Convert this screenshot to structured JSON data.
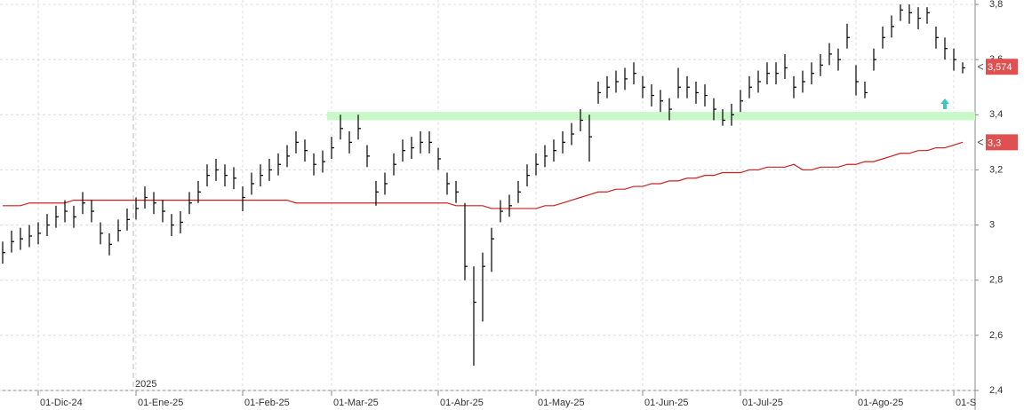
{
  "chart_data": {
    "type": "hlc",
    "categories": [
      null,
      null,
      null,
      null,
      "01-Dic-24",
      null,
      null,
      null,
      null,
      null,
      null,
      null,
      null,
      null,
      null,
      "01-Ene-25",
      null,
      null,
      null,
      null,
      null,
      null,
      null,
      null,
      null,
      null,
      null,
      "01-Feb-25",
      null,
      null,
      null,
      null,
      null,
      null,
      null,
      null,
      null,
      "01-Mar-25",
      null,
      null,
      null,
      null,
      null,
      null,
      null,
      null,
      null,
      null,
      null,
      "01-Abr-25",
      null,
      null,
      null,
      null,
      null,
      null,
      null,
      null,
      null,
      null,
      "01-May-25",
      null,
      null,
      null,
      null,
      null,
      null,
      null,
      null,
      null,
      null,
      null,
      "01-Jun-25",
      null,
      null,
      null,
      null,
      null,
      null,
      null,
      null,
      null,
      null,
      "01-Jul-25",
      null,
      null,
      null,
      null,
      null,
      null,
      null,
      null,
      null,
      null,
      null,
      null,
      "01-Ago-25",
      null,
      null,
      null,
      null,
      null,
      null,
      null,
      null,
      null,
      null,
      "01-S",
      null
    ],
    "high": [
      2.94,
      2.98,
      2.99,
      3.0,
      3.01,
      3.04,
      3.07,
      3.09,
      3.07,
      3.12,
      3.09,
      3.01,
      2.97,
      3.02,
      3.06,
      3.1,
      3.14,
      3.12,
      3.09,
      3.04,
      3.05,
      3.12,
      3.16,
      3.22,
      3.24,
      3.22,
      3.21,
      3.14,
      3.19,
      3.22,
      3.24,
      3.26,
      3.29,
      3.34,
      3.31,
      3.26,
      3.27,
      3.32,
      3.4,
      3.34,
      3.4,
      3.29,
      3.16,
      3.19,
      3.26,
      3.31,
      3.32,
      3.34,
      3.34,
      3.28,
      3.19,
      3.16,
      3.08,
      2.85,
      2.9,
      2.99,
      3.09,
      3.11,
      3.16,
      3.22,
      3.26,
      3.29,
      3.31,
      3.34,
      3.37,
      3.42,
      3.4,
      3.52,
      3.54,
      3.56,
      3.57,
      3.59,
      3.54,
      3.51,
      3.49,
      3.46,
      3.57,
      3.54,
      3.52,
      3.51,
      3.46,
      3.42,
      3.44,
      3.49,
      3.54,
      3.56,
      3.59,
      3.59,
      3.62,
      3.54,
      3.56,
      3.59,
      3.62,
      3.66,
      3.64,
      3.73,
      3.58,
      3.52,
      3.64,
      3.72,
      3.76,
      3.8,
      3.8,
      3.79,
      3.79,
      3.72,
      3.68,
      3.64,
      3.59
    ],
    "low": [
      2.86,
      2.9,
      2.91,
      2.92,
      2.93,
      2.96,
      2.99,
      3.01,
      2.99,
      3.04,
      3.01,
      2.93,
      2.89,
      2.94,
      2.98,
      3.02,
      3.06,
      3.04,
      3.01,
      2.96,
      2.97,
      3.04,
      3.08,
      3.14,
      3.16,
      3.14,
      3.13,
      3.05,
      3.11,
      3.14,
      3.16,
      3.18,
      3.21,
      3.26,
      3.23,
      3.18,
      3.19,
      3.24,
      3.31,
      3.26,
      3.31,
      3.21,
      3.07,
      3.11,
      3.18,
      3.23,
      3.24,
      3.26,
      3.26,
      3.2,
      3.11,
      3.08,
      2.8,
      2.49,
      2.65,
      2.83,
      3.01,
      3.03,
      3.08,
      3.14,
      3.18,
      3.21,
      3.23,
      3.26,
      3.29,
      3.34,
      3.23,
      3.44,
      3.46,
      3.48,
      3.49,
      3.51,
      3.46,
      3.43,
      3.41,
      3.38,
      3.46,
      3.46,
      3.44,
      3.43,
      3.38,
      3.36,
      3.36,
      3.41,
      3.46,
      3.48,
      3.51,
      3.51,
      3.53,
      3.46,
      3.48,
      3.51,
      3.54,
      3.58,
      3.56,
      3.64,
      3.47,
      3.46,
      3.56,
      3.64,
      3.68,
      3.74,
      3.73,
      3.71,
      3.73,
      3.64,
      3.6,
      3.56,
      3.55
    ],
    "close": [
      2.9,
      2.94,
      2.95,
      2.96,
      2.97,
      3.0,
      3.03,
      3.05,
      3.03,
      3.08,
      3.05,
      2.97,
      2.93,
      2.98,
      3.02,
      3.06,
      3.1,
      3.08,
      3.05,
      3.0,
      3.01,
      3.08,
      3.12,
      3.18,
      3.2,
      3.18,
      3.17,
      3.1,
      3.15,
      3.18,
      3.2,
      3.22,
      3.25,
      3.3,
      3.27,
      3.22,
      3.23,
      3.28,
      3.35,
      3.3,
      3.35,
      3.25,
      3.12,
      3.15,
      3.22,
      3.27,
      3.28,
      3.3,
      3.3,
      3.24,
      3.15,
      3.12,
      2.85,
      2.72,
      2.85,
      2.95,
      3.05,
      3.07,
      3.12,
      3.18,
      3.22,
      3.25,
      3.27,
      3.3,
      3.33,
      3.38,
      3.32,
      3.48,
      3.5,
      3.52,
      3.53,
      3.55,
      3.5,
      3.47,
      3.45,
      3.42,
      3.5,
      3.5,
      3.48,
      3.47,
      3.42,
      3.38,
      3.4,
      3.45,
      3.5,
      3.52,
      3.55,
      3.55,
      3.57,
      3.5,
      3.52,
      3.55,
      3.58,
      3.62,
      3.6,
      3.68,
      3.52,
      3.48,
      3.6,
      3.68,
      3.72,
      3.78,
      3.77,
      3.75,
      3.77,
      3.68,
      3.64,
      3.6,
      3.57
    ],
    "color": "#000000",
    "moving_average": {
      "color": "#cc2020",
      "values": [
        3.07,
        3.07,
        3.07,
        3.08,
        3.08,
        3.08,
        3.08,
        3.08,
        3.09,
        3.09,
        3.09,
        3.09,
        3.09,
        3.09,
        3.09,
        3.09,
        3.09,
        3.09,
        3.09,
        3.09,
        3.09,
        3.09,
        3.09,
        3.09,
        3.09,
        3.09,
        3.09,
        3.09,
        3.09,
        3.09,
        3.09,
        3.09,
        3.09,
        3.08,
        3.08,
        3.08,
        3.08,
        3.08,
        3.08,
        3.08,
        3.08,
        3.08,
        3.08,
        3.08,
        3.08,
        3.08,
        3.08,
        3.08,
        3.08,
        3.08,
        3.08,
        3.07,
        3.07,
        3.07,
        3.07,
        3.06,
        3.06,
        3.06,
        3.06,
        3.06,
        3.06,
        3.07,
        3.07,
        3.08,
        3.09,
        3.1,
        3.11,
        3.12,
        3.12,
        3.13,
        3.13,
        3.14,
        3.14,
        3.15,
        3.15,
        3.16,
        3.16,
        3.17,
        3.17,
        3.18,
        3.18,
        3.19,
        3.19,
        3.19,
        3.2,
        3.2,
        3.21,
        3.21,
        3.21,
        3.22,
        3.2,
        3.2,
        3.21,
        3.21,
        3.21,
        3.22,
        3.22,
        3.23,
        3.23,
        3.24,
        3.25,
        3.26,
        3.26,
        3.27,
        3.27,
        3.28,
        3.28,
        3.29,
        3.3
      ]
    },
    "zone": {
      "from": 3.38,
      "to": 3.41,
      "color": "#c8f7c8"
    },
    "price_markers": [
      {
        "value": 3.574,
        "label": "3,574"
      },
      {
        "value": 3.3,
        "label": "3,3"
      }
    ],
    "marker_color": "#e05050",
    "year_label": "2025",
    "ylim": [
      2.4,
      3.8
    ],
    "yticks": [
      {
        "value": 2.4,
        "label": "2,4"
      },
      {
        "value": 2.6,
        "label": "2,6"
      },
      {
        "value": 2.8,
        "label": "2,8"
      },
      3,
      {
        "value": 3.2,
        "label": "3,2"
      },
      {
        "value": 3.4,
        "label": "3,4"
      },
      {
        "value": 3.6,
        "label": "3,6"
      },
      {
        "value": 3.8,
        "label": "3,8"
      }
    ],
    "grid": true
  }
}
